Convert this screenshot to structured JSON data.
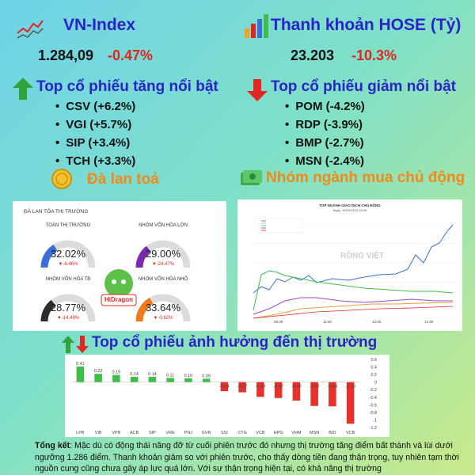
{
  "vnindex": {
    "title": "VN-Index",
    "value": "1.284,09",
    "change": "-0.47%"
  },
  "liquidity": {
    "title": "Thanh khoản HOSE (Tỷ)",
    "value": "23.203",
    "change": "-10.3%"
  },
  "gainers": {
    "title": "Top cổ phiếu tăng nổi bật",
    "items": [
      "CSV (+6.2%)",
      "VGI (+5.7%)",
      "SIP (+3.4%)",
      "TCH (+3.3%)"
    ]
  },
  "losers": {
    "title": "Top cổ phiếu giảm nổi bật",
    "items": [
      "POM (-4.2%)",
      "RDP (-3.9%)",
      "BMP (-2.7%)",
      "MSN (-2.4%)"
    ]
  },
  "spread": {
    "title": "Đà lan toả",
    "panel_title": "ĐÀ LAN TỎA THỊ TRƯỜNG",
    "gauges": [
      {
        "title": "TOÀN THỊ TRƯỜNG",
        "value": "32.02%",
        "change": "▼-6.46%",
        "color": "#3a6fd6",
        "fraction": 0.32
      },
      {
        "title": "NHÓM VỐN HÓA LỚN",
        "value": "29.00%",
        "change": "▼-24.47%",
        "color": "#7a2bb0",
        "fraction": 0.29
      },
      {
        "title": "NHÓM VỐN HÓA TB",
        "value": "28.77%",
        "change": "▼-14.49%",
        "color": "#2d2d2d",
        "fraction": 0.2877
      },
      {
        "title": "NHÓM VỐN HÓA NHỎ",
        "value": "33.64%",
        "change": "▼-0.62%",
        "color": "#f07a1a",
        "fraction": 0.3364
      }
    ],
    "scale": [
      "0%",
      "20%",
      "40%",
      "60%",
      "80%",
      "100%"
    ],
    "badge": "HiDragon"
  },
  "sector": {
    "title": "Nhóm ngành mua chủ động",
    "chart_title": "TOP NGÀNH GIAO DỊCH CHỦ ĐỘNG",
    "chart_subtitle": "Ngày: 26/03/2024 15:26",
    "watermark": "RỒNG VIỆT",
    "x_ticks": [
      "09:30",
      "11:00",
      "13:00",
      "14:30"
    ]
  },
  "impact": {
    "title": "Top cổ phiếu ảnh hưởng đến thị trường",
    "chart_data": {
      "type": "bar",
      "categories": [
        "LPB",
        "VIB",
        "VPB",
        "ACB",
        "SIP",
        "VRE",
        "PNJ",
        "GVR",
        "SSI",
        "CTG",
        "VCB",
        "HPG",
        "VHM",
        "MSN",
        "BID",
        "VCB"
      ],
      "values": [
        0.41,
        0.22,
        0.19,
        0.14,
        0.14,
        0.11,
        0.1,
        0.09,
        -0.24,
        -0.27,
        -0.39,
        -0.42,
        -0.49,
        -0.63,
        -0.64,
        -1.1
      ],
      "labels": [
        "0.41",
        "0.22",
        "0.19",
        "0.14",
        "0.14",
        "0.11",
        "0.10",
        "0.09",
        "-0.24",
        "-0.27",
        "-0.39",
        "-0.42",
        "-0.49",
        "-0.63",
        "-0.64",
        "-1.10"
      ],
      "ylim": [
        -1.2,
        0.6
      ],
      "yticks": [
        "0.6",
        "0.4",
        "0.2",
        "0",
        "-0.2",
        "-0.4",
        "-0.6",
        "-0.8",
        "-1",
        "-1.2"
      ],
      "pos_color": "#3fbf4a",
      "neg_color": "#e8312a"
    }
  },
  "summary": {
    "label": "Tổng kết",
    "text": ": Mặc dù có động thái nâng đỡ từ cuối phiên trước đó nhưng thị trường tăng điểm bất thành và lùi dưới ngưỡng 1.286 điểm. Thanh khoản giảm so với phiên trước, cho thấy dòng tiền đang thận trọng, tuy nhiên tạm thời nguồn cung cũng chưa gây áp lực quá lớn. Với sự thận trọng hiện tại, có khả năng thị trường"
  }
}
